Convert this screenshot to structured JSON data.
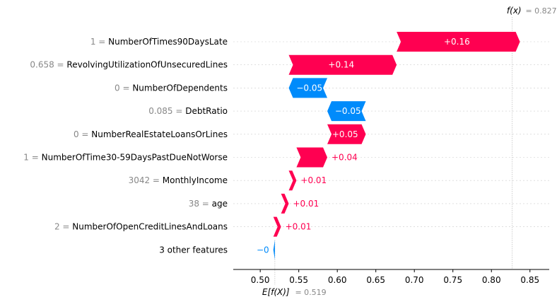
{
  "chart_data": {
    "type": "waterfall",
    "base_value": 0.519,
    "base_label": "E[f(X)]",
    "base_value_text": "= 0.519",
    "output_value": 0.827,
    "output_label": "f(x)",
    "output_value_text": "= 0.827",
    "xlim": [
      0.465,
      0.875
    ],
    "xticks": [
      0.5,
      0.55,
      0.6,
      0.65,
      0.7,
      0.75,
      0.8,
      0.85
    ],
    "xtick_labels": [
      "0.50",
      "0.55",
      "0.60",
      "0.65",
      "0.70",
      "0.75",
      "0.80",
      "0.85"
    ],
    "features": [
      {
        "value": "1",
        "name": "NumberOfTimes90DaysLate",
        "contribution": 0.16,
        "label": "+0.16"
      },
      {
        "value": "0.658",
        "name": "RevolvingUtilizationOfUnsecuredLines",
        "contribution": 0.14,
        "label": "+0.14"
      },
      {
        "value": "0",
        "name": "NumberOfDependents",
        "contribution": -0.05,
        "label": "−0.05"
      },
      {
        "value": "0.085",
        "name": "DebtRatio",
        "contribution": -0.05,
        "label": "−0.05"
      },
      {
        "value": "0",
        "name": "NumberRealEstateLoansOrLines",
        "contribution": 0.05,
        "label": "+0.05"
      },
      {
        "value": "1",
        "name": "NumberOfTime30-59DaysPastDueNotWorse",
        "contribution": 0.04,
        "label": "+0.04"
      },
      {
        "value": "3042",
        "name": "MonthlyIncome",
        "contribution": 0.01,
        "label": "+0.01"
      },
      {
        "value": "38",
        "name": "age",
        "contribution": 0.01,
        "label": "+0.01"
      },
      {
        "value": "2",
        "name": "NumberOfOpenCreditLinesAndLoans",
        "contribution": 0.01,
        "label": "+0.01"
      },
      {
        "value": "",
        "name": "3 other features",
        "contribution": -0.002,
        "label": "−0"
      }
    ]
  },
  "colors": {
    "positive": "#ff0051",
    "negative": "#008bfb"
  }
}
